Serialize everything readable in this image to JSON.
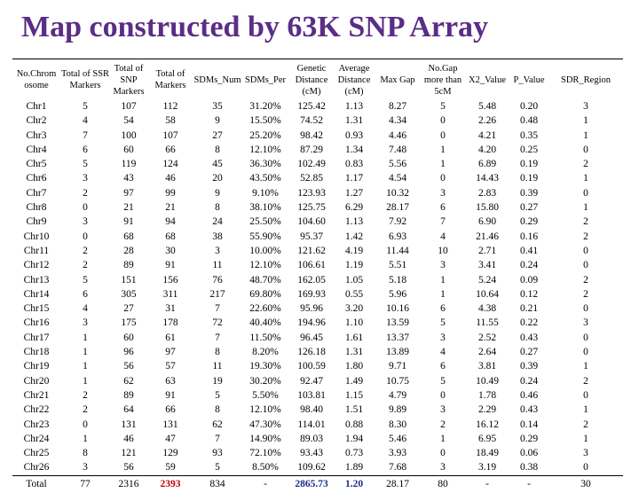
{
  "title": "Map constructed by 63K SNP Array",
  "table": {
    "headers": [
      "No.Chrom osome",
      "Total of SSR Markers",
      "Total of SNP Markers",
      "Total of Markers",
      "SDMs_Num",
      "SDMs_Per",
      "Genetic Distance (cM)",
      "Average Distance (cM)",
      "Max Gap",
      "No.Gap more than 5cM",
      "X2_Value",
      "P_Value",
      "SDR_Region"
    ],
    "rows": [
      [
        "Chr1",
        "5",
        "107",
        "112",
        "35",
        "31.20%",
        "125.42",
        "1.13",
        "8.27",
        "5",
        "5.48",
        "0.20",
        "3"
      ],
      [
        "Chr2",
        "4",
        "54",
        "58",
        "9",
        "15.50%",
        "74.52",
        "1.31",
        "4.34",
        "0",
        "2.26",
        "0.48",
        "1"
      ],
      [
        "Chr3",
        "7",
        "100",
        "107",
        "27",
        "25.20%",
        "98.42",
        "0.93",
        "4.46",
        "0",
        "4.21",
        "0.35",
        "1"
      ],
      [
        "Chr4",
        "6",
        "60",
        "66",
        "8",
        "12.10%",
        "87.29",
        "1.34",
        "7.48",
        "1",
        "4.20",
        "0.25",
        "0"
      ],
      [
        "Chr5",
        "5",
        "119",
        "124",
        "45",
        "36.30%",
        "102.49",
        "0.83",
        "5.56",
        "1",
        "6.89",
        "0.19",
        "2"
      ],
      [
        "Chr6",
        "3",
        "43",
        "46",
        "20",
        "43.50%",
        "52.85",
        "1.17",
        "4.54",
        "0",
        "14.43",
        "0.19",
        "1"
      ],
      [
        "Chr7",
        "2",
        "97",
        "99",
        "9",
        "9.10%",
        "123.93",
        "1.27",
        "10.32",
        "3",
        "2.83",
        "0.39",
        "0"
      ],
      [
        "Chr8",
        "0",
        "21",
        "21",
        "8",
        "38.10%",
        "125.75",
        "6.29",
        "28.17",
        "6",
        "15.80",
        "0.27",
        "1"
      ],
      [
        "Chr9",
        "3",
        "91",
        "94",
        "24",
        "25.50%",
        "104.60",
        "1.13",
        "7.92",
        "7",
        "6.90",
        "0.29",
        "2"
      ],
      [
        "Chr10",
        "0",
        "68",
        "68",
        "38",
        "55.90%",
        "95.37",
        "1.42",
        "6.93",
        "4",
        "21.46",
        "0.16",
        "2"
      ],
      [
        "Chr11",
        "2",
        "28",
        "30",
        "3",
        "10.00%",
        "121.62",
        "4.19",
        "11.44",
        "10",
        "2.71",
        "0.41",
        "0"
      ],
      [
        "Chr12",
        "2",
        "89",
        "91",
        "11",
        "12.10%",
        "106.61",
        "1.19",
        "5.51",
        "3",
        "3.41",
        "0.24",
        "0"
      ],
      [
        "Chr13",
        "5",
        "151",
        "156",
        "76",
        "48.70%",
        "162.05",
        "1.05",
        "5.18",
        "1",
        "5.24",
        "0.09",
        "2"
      ],
      [
        "Chr14",
        "6",
        "305",
        "311",
        "217",
        "69.80%",
        "169.93",
        "0.55",
        "5.96",
        "1",
        "10.64",
        "0.12",
        "2"
      ],
      [
        "Chr15",
        "4",
        "27",
        "31",
        "7",
        "22.60%",
        "95.96",
        "3.20",
        "10.16",
        "6",
        "4.38",
        "0.21",
        "0"
      ],
      [
        "Chr16",
        "3",
        "175",
        "178",
        "72",
        "40.40%",
        "194.96",
        "1.10",
        "13.59",
        "5",
        "11.55",
        "0.22",
        "3"
      ],
      [
        "Chr17",
        "1",
        "60",
        "61",
        "7",
        "11.50%",
        "96.45",
        "1.61",
        "13.37",
        "3",
        "2.52",
        "0.43",
        "0"
      ],
      [
        "Chr18",
        "1",
        "96",
        "97",
        "8",
        "8.20%",
        "126.18",
        "1.31",
        "13.89",
        "4",
        "2.64",
        "0.27",
        "0"
      ],
      [
        "Chr19",
        "1",
        "56",
        "57",
        "11",
        "19.30%",
        "100.59",
        "1.80",
        "9.71",
        "6",
        "3.81",
        "0.39",
        "1"
      ],
      [
        "Chr20",
        "1",
        "62",
        "63",
        "19",
        "30.20%",
        "92.47",
        "1.49",
        "10.75",
        "5",
        "10.49",
        "0.24",
        "2"
      ],
      [
        "Chr21",
        "2",
        "89",
        "91",
        "5",
        "5.50%",
        "103.81",
        "1.15",
        "4.79",
        "0",
        "1.78",
        "0.46",
        "0"
      ],
      [
        "Chr22",
        "2",
        "64",
        "66",
        "8",
        "12.10%",
        "98.40",
        "1.51",
        "9.89",
        "3",
        "2.29",
        "0.43",
        "1"
      ],
      [
        "Chr23",
        "0",
        "131",
        "131",
        "62",
        "47.30%",
        "114.01",
        "0.88",
        "8.30",
        "2",
        "16.12",
        "0.14",
        "2"
      ],
      [
        "Chr24",
        "1",
        "46",
        "47",
        "7",
        "14.90%",
        "89.03",
        "1.94",
        "5.46",
        "1",
        "6.95",
        "0.29",
        "1"
      ],
      [
        "Chr25",
        "8",
        "121",
        "129",
        "93",
        "72.10%",
        "93.43",
        "0.73",
        "3.93",
        "0",
        "18.49",
        "0.06",
        "3"
      ],
      [
        "Chr26",
        "3",
        "56",
        "59",
        "5",
        "8.50%",
        "109.62",
        "1.89",
        "7.68",
        "3",
        "3.19",
        "0.38",
        "0"
      ]
    ],
    "total": [
      "Total",
      "77",
      "2316",
      "2393",
      "834",
      "-",
      "2865.73",
      "1.20",
      "28.17",
      "80",
      "-",
      "-",
      "30"
    ],
    "total_colors": {
      "3": "#c00000",
      "6": "#1c2c8c",
      "7": "#1c2c8c"
    }
  }
}
